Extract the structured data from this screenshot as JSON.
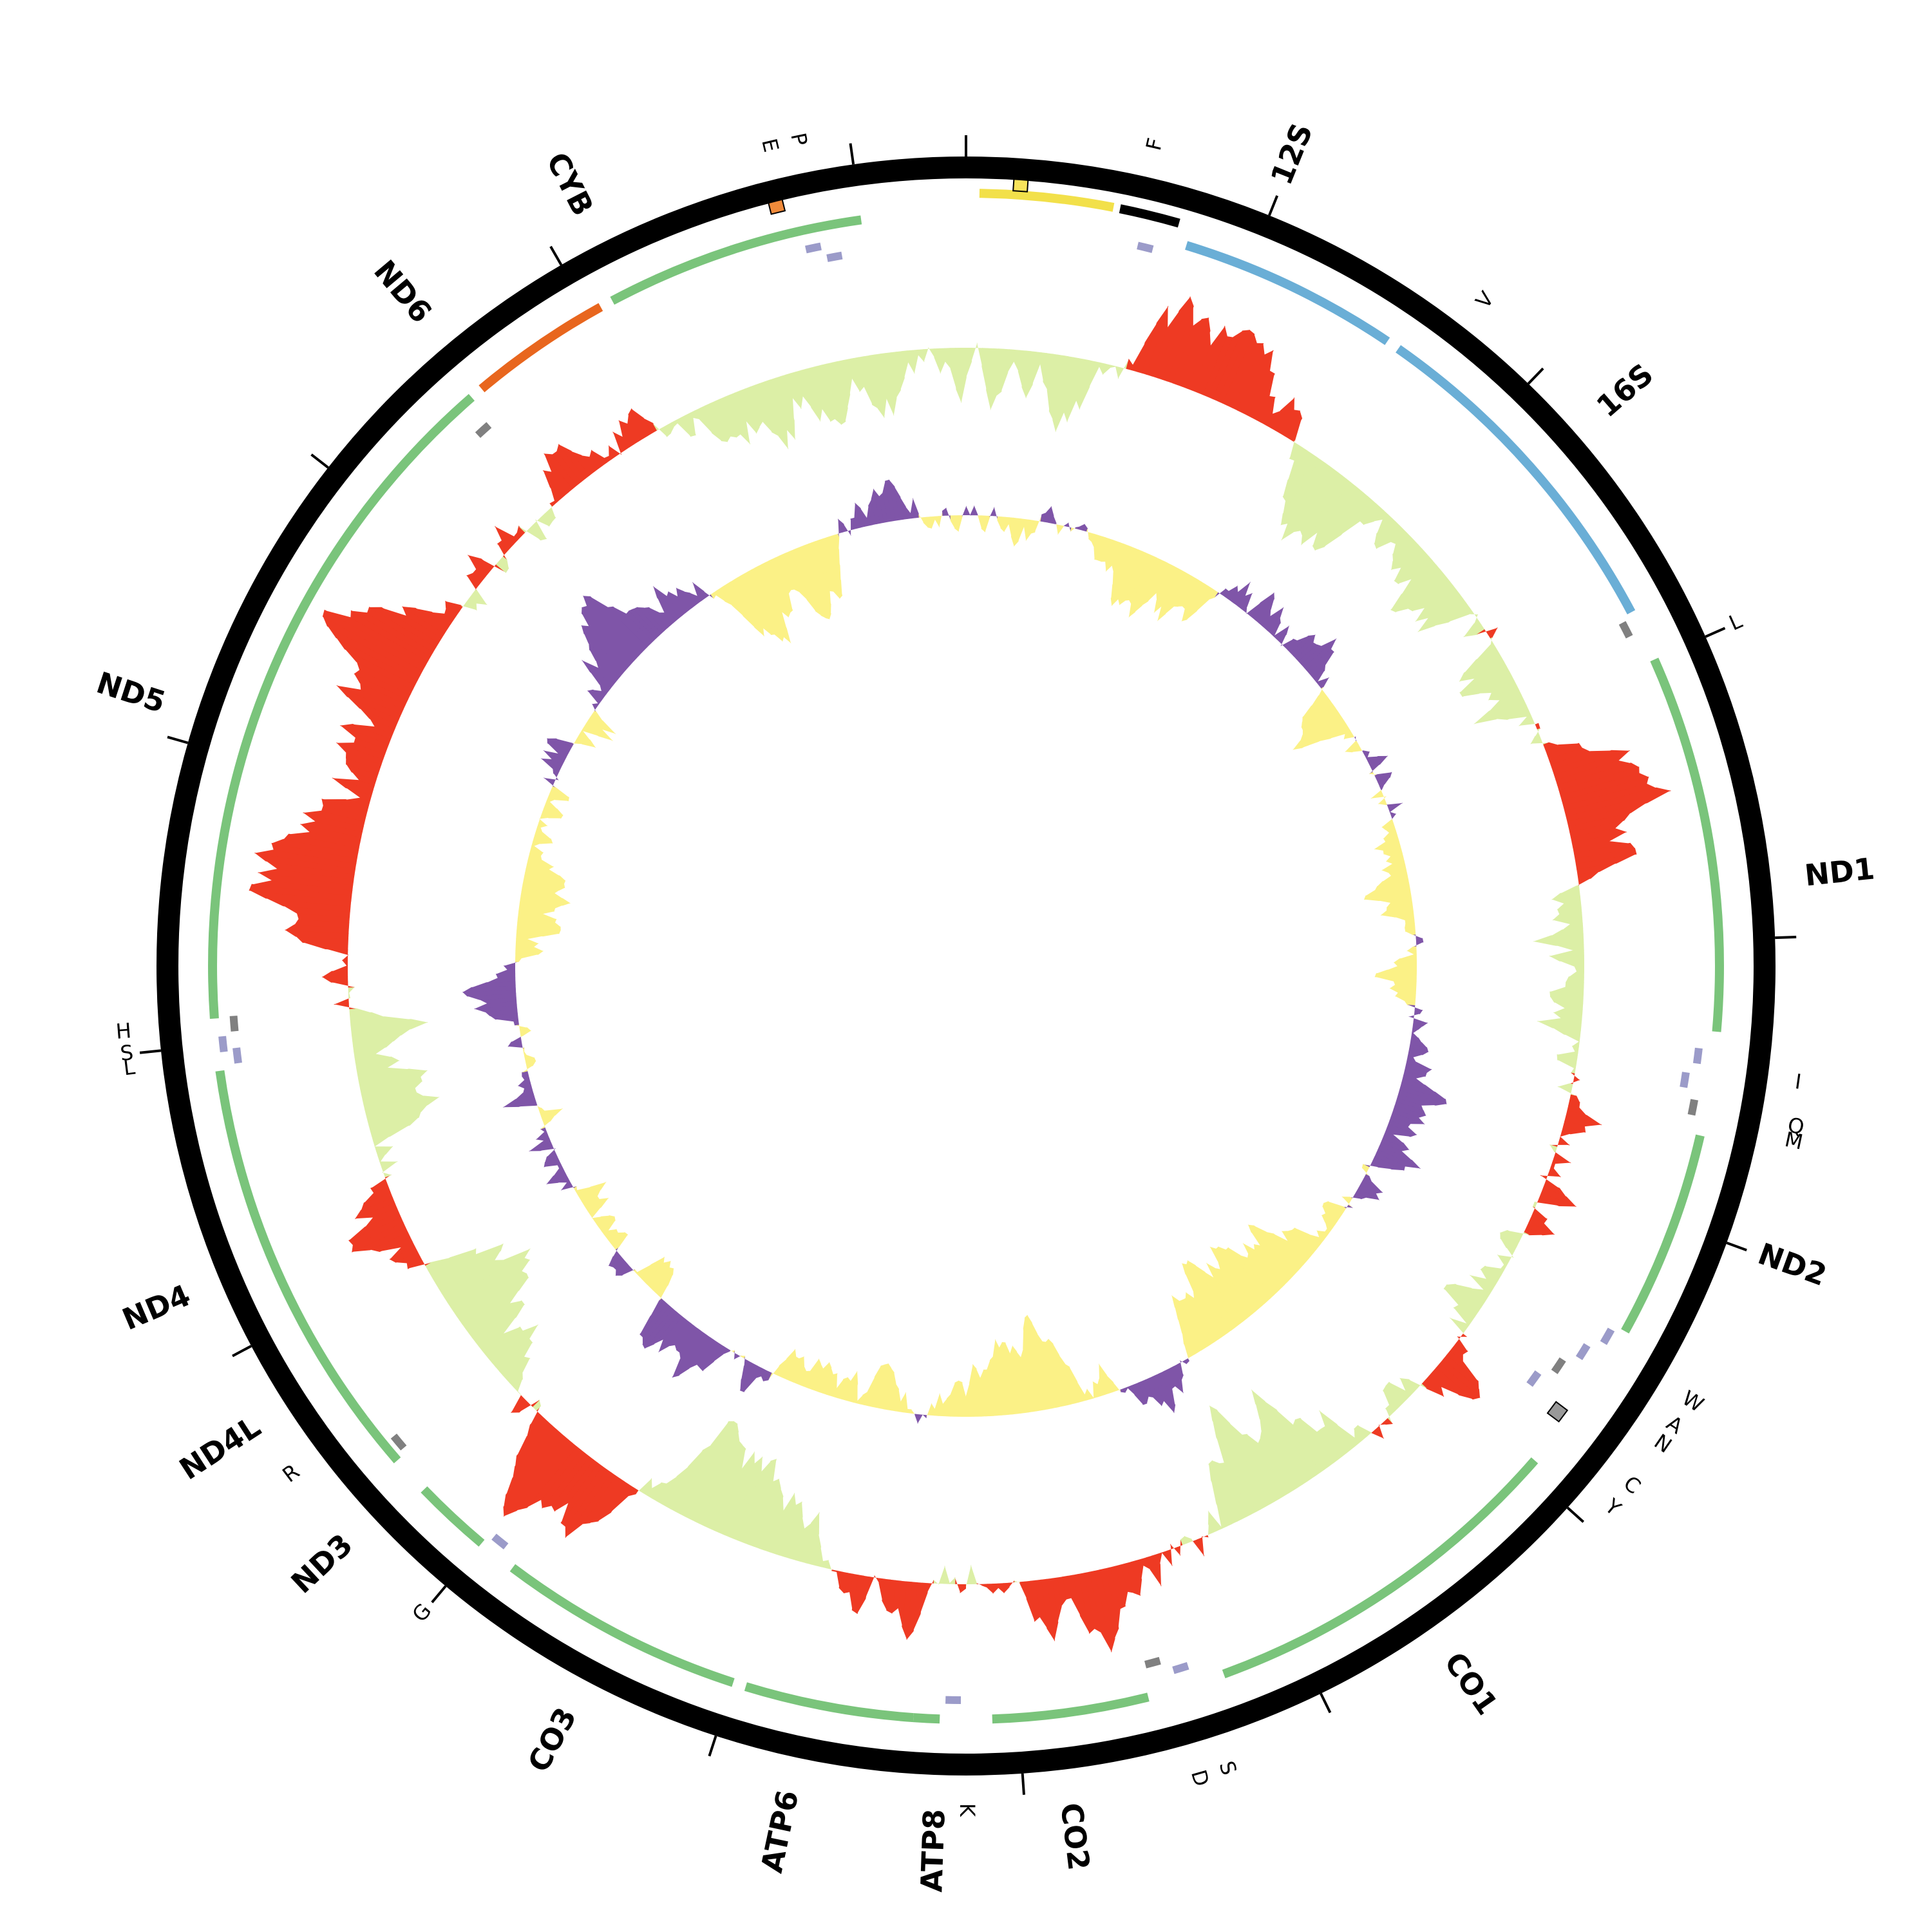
{
  "genome_map": {
    "colors": {
      "backbone": "#000000",
      "protein_gene": "#7ac47b",
      "nd6_gene": "#e8661e",
      "rrna": "#6aaed6",
      "trna": "#9b9bc9",
      "trna_alt": "#808080",
      "control_region": "#f2e04a",
      "control_black": "#000000",
      "skew_positive_outer": "#ee3a23",
      "skew_negative_outer": "#dcefa6",
      "skew_positive_inner": "#7f55a8",
      "skew_negative_inner": "#fbf186",
      "marker_orange": "#f08a3a",
      "marker_yellow": "#f7e35b",
      "marker_grey": "#999999"
    },
    "gene_labels": [
      {
        "text": "12S",
        "angle": 22
      },
      {
        "text": "16S",
        "angle": 49
      },
      {
        "text": "ND1",
        "angle": 84
      },
      {
        "text": "ND2",
        "angle": 110
      },
      {
        "text": "CO1",
        "angle": 145
      },
      {
        "text": "CO2",
        "angle": 173
      },
      {
        "text": "ATP8",
        "angle": 182
      },
      {
        "text": "ATP6",
        "angle": 192
      },
      {
        "text": "CO3",
        "angle": 208
      },
      {
        "text": "ND3",
        "angle": 227
      },
      {
        "text": "ND4L",
        "angle": 237
      },
      {
        "text": "ND4",
        "angle": 247
      },
      {
        "text": "ND5",
        "angle": 288
      },
      {
        "text": "ND6",
        "angle": 320
      },
      {
        "text": "CYB",
        "angle": 333
      }
    ],
    "trna_labels": [
      {
        "text": "F",
        "angle": 13
      },
      {
        "text": "V",
        "angle": 38
      },
      {
        "text": "L",
        "angle": 66
      },
      {
        "text": "I",
        "angle": 98
      },
      {
        "text": "Q",
        "angle": 101
      },
      {
        "text": "M",
        "angle": 102
      },
      {
        "text": "W",
        "angle": 121
      },
      {
        "text": "A",
        "angle": 123
      },
      {
        "text": "N",
        "angle": 124.5
      },
      {
        "text": "C",
        "angle": 128
      },
      {
        "text": "Y",
        "angle": 130
      },
      {
        "text": "S",
        "angle": 162
      },
      {
        "text": "D",
        "angle": 164
      },
      {
        "text": "K",
        "angle": 180
      },
      {
        "text": "G",
        "angle": 220
      },
      {
        "text": "R",
        "angle": 233
      },
      {
        "text": "L",
        "angle": 263
      },
      {
        "text": "S",
        "angle": 264
      },
      {
        "text": "H",
        "angle": 265.5
      },
      {
        "text": "P",
        "angle": 348.5
      },
      {
        "text": "E",
        "angle": 346.5
      }
    ]
  }
}
